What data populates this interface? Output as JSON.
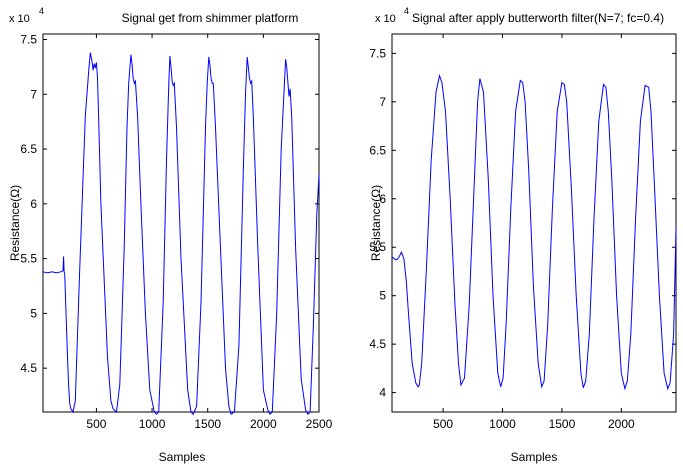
{
  "chart_data": [
    {
      "type": "line",
      "title": "Signal get from shimmer platform",
      "xlabel": "Samples",
      "ylabel": "Resistance(Ω)",
      "y_multiplier_label": "x 10",
      "y_multiplier_exponent": "4",
      "xlim": [
        20,
        2500
      ],
      "ylim": [
        4.1,
        7.55
      ],
      "xticks": [
        500,
        1000,
        1500,
        2000,
        2500
      ],
      "xtick_labels": [
        "500",
        "1000",
        "1500",
        "2000",
        "2500"
      ],
      "yticks": [
        4.5,
        5,
        5.5,
        6,
        6.5,
        7,
        7.5
      ],
      "ytick_labels": [
        "4.5",
        "5",
        "5.5",
        "6",
        "6.5",
        "7",
        "7.5"
      ],
      "grid": false,
      "line_color": "#0000ff",
      "series": [
        {
          "x": [
            20,
            60,
            100,
            140,
            180,
            200,
            205,
            210,
            215,
            220,
            240,
            250,
            260,
            270,
            290,
            310,
            350,
            400,
            430,
            445,
            460,
            470,
            480,
            490,
            500,
            510,
            520,
            540,
            600,
            630,
            650,
            680,
            710,
            750,
            775,
            790,
            810,
            820,
            830,
            840,
            850,
            870,
            900,
            940,
            980,
            1020,
            1040,
            1060,
            1100,
            1130,
            1150,
            1160,
            1170,
            1180,
            1190,
            1200,
            1220,
            1260,
            1320,
            1350,
            1370,
            1400,
            1440,
            1480,
            1495,
            1510,
            1520,
            1530,
            1540,
            1550,
            1570,
            1610,
            1660,
            1690,
            1710,
            1740,
            1780,
            1820,
            1840,
            1855,
            1865,
            1875,
            1885,
            1895,
            1910,
            1950,
            2000,
            2040,
            2060,
            2080,
            2120,
            2160,
            2185,
            2200,
            2210,
            2220,
            2230,
            2240,
            2255,
            2290,
            2340,
            2380,
            2400,
            2420,
            2450,
            2480,
            2500
          ],
          "values": [
            5.38,
            5.37,
            5.38,
            5.37,
            5.38,
            5.39,
            5.52,
            5.38,
            5.36,
            5.2,
            4.6,
            4.35,
            4.18,
            4.13,
            4.1,
            4.2,
            5.4,
            6.8,
            7.2,
            7.38,
            7.3,
            7.22,
            7.28,
            7.24,
            7.29,
            7.15,
            6.8,
            6.0,
            4.6,
            4.2,
            4.13,
            4.1,
            4.35,
            5.6,
            6.7,
            7.1,
            7.36,
            7.28,
            7.15,
            7.1,
            7.12,
            6.8,
            6.0,
            5.0,
            4.3,
            4.1,
            4.08,
            4.1,
            5.1,
            6.4,
            7.1,
            7.35,
            7.25,
            7.12,
            7.08,
            7.1,
            6.7,
            5.5,
            4.3,
            4.1,
            4.08,
            4.15,
            5.1,
            6.7,
            7.1,
            7.34,
            7.27,
            7.15,
            7.1,
            7.1,
            6.7,
            5.7,
            4.5,
            4.15,
            4.08,
            4.1,
            4.7,
            6.3,
            7.0,
            7.34,
            7.25,
            7.15,
            7.1,
            7.12,
            6.8,
            5.6,
            4.3,
            4.12,
            4.08,
            4.1,
            5.0,
            6.5,
            7.0,
            7.32,
            7.25,
            7.12,
            6.98,
            7.05,
            6.8,
            5.6,
            4.4,
            4.12,
            4.08,
            4.1,
            4.9,
            5.9,
            6.27
          ]
        }
      ]
    },
    {
      "type": "line",
      "title": "Signal after apply butterworth filter(N=7; fc=0.4)",
      "xlabel": "Samples",
      "ylabel": "Resistance(Ω)",
      "y_multiplier_label": "x 10",
      "y_multiplier_exponent": "4",
      "xlim": [
        70,
        2460
      ],
      "ylim": [
        3.8,
        7.7
      ],
      "xticks": [
        500,
        1000,
        1500,
        2000
      ],
      "xtick_labels": [
        "500",
        "1000",
        "1500",
        "2000"
      ],
      "yticks": [
        4,
        4.5,
        5,
        5.5,
        6,
        6.5,
        7,
        7.5
      ],
      "ytick_labels": [
        "4",
        "4.5",
        "5",
        "5.5",
        "6",
        "6.5",
        "7",
        "7.5"
      ],
      "grid": false,
      "line_color": "#0000ff",
      "series": [
        {
          "x": [
            70,
            90,
            110,
            130,
            150,
            170,
            190,
            210,
            240,
            270,
            290,
            300,
            320,
            360,
            400,
            440,
            470,
            490,
            520,
            560,
            600,
            630,
            650,
            680,
            720,
            760,
            790,
            810,
            840,
            880,
            920,
            960,
            985,
            1005,
            1030,
            1070,
            1110,
            1150,
            1170,
            1190,
            1220,
            1260,
            1300,
            1330,
            1350,
            1380,
            1420,
            1460,
            1500,
            1520,
            1540,
            1580,
            1620,
            1660,
            1680,
            1700,
            1730,
            1770,
            1810,
            1850,
            1870,
            1890,
            1920,
            1960,
            2000,
            2030,
            2050,
            2080,
            2120,
            2160,
            2200,
            2230,
            2250,
            2280,
            2320,
            2360,
            2390,
            2410,
            2440,
            2460
          ],
          "values": [
            5.4,
            5.38,
            5.37,
            5.4,
            5.45,
            5.38,
            5.15,
            4.8,
            4.3,
            4.1,
            4.06,
            4.08,
            4.3,
            5.3,
            6.4,
            7.1,
            7.27,
            7.2,
            6.9,
            6.0,
            4.9,
            4.3,
            4.08,
            4.15,
            4.9,
            6.1,
            7.0,
            7.24,
            7.1,
            6.2,
            5.0,
            4.2,
            4.06,
            4.15,
            4.7,
            5.9,
            6.9,
            7.22,
            7.2,
            7.0,
            6.3,
            5.1,
            4.3,
            4.06,
            4.12,
            4.7,
            5.9,
            6.9,
            7.2,
            7.18,
            7.0,
            6.1,
            5.0,
            4.2,
            4.05,
            4.12,
            4.6,
            5.8,
            6.8,
            7.18,
            7.15,
            6.9,
            6.2,
            5.0,
            4.2,
            4.04,
            4.12,
            4.6,
            5.8,
            6.8,
            7.17,
            7.15,
            6.9,
            6.1,
            5.0,
            4.2,
            4.04,
            4.1,
            4.6,
            5.7
          ]
        }
      ]
    }
  ]
}
